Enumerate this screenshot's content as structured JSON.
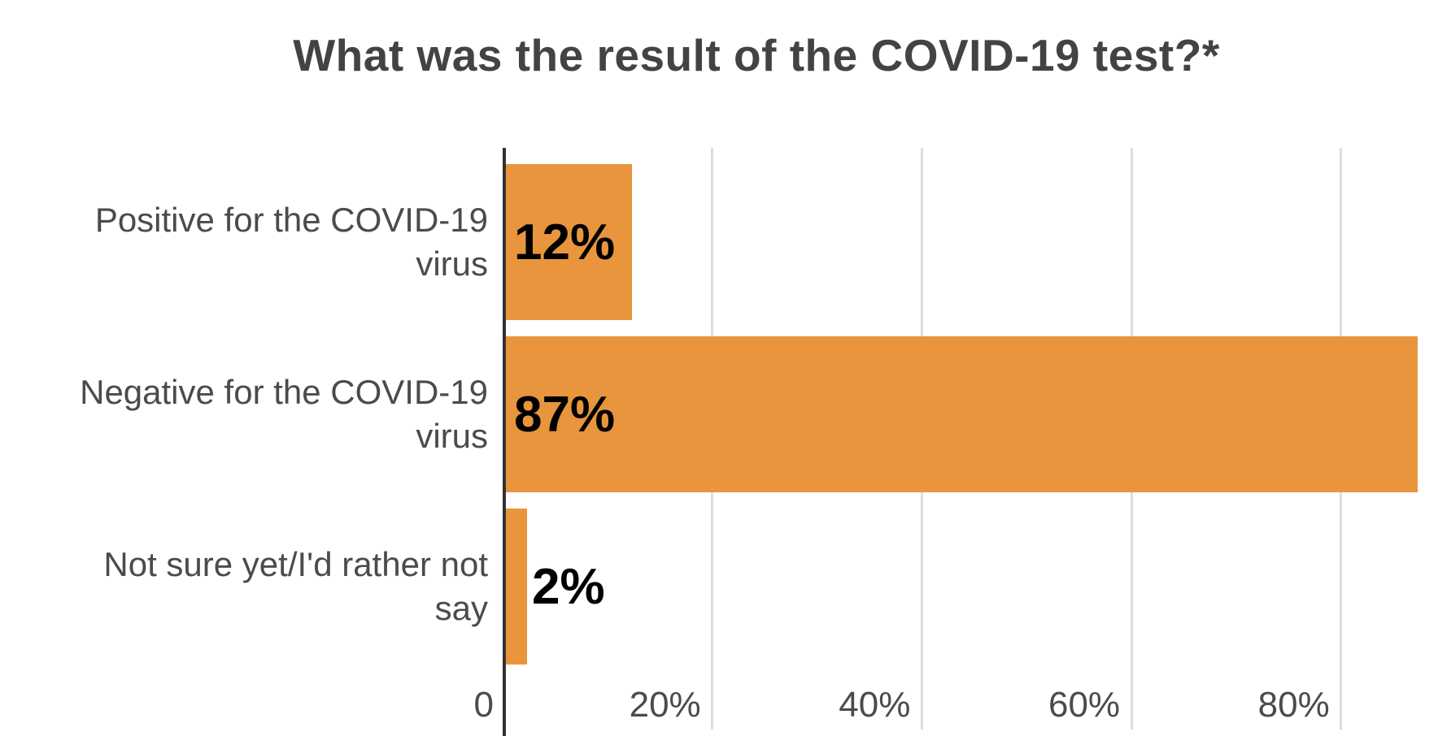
{
  "chart_data": {
    "type": "bar",
    "orientation": "horizontal",
    "title": "What was the result of the COVID-19 test?*",
    "categories": [
      "Positive for the COVID-19 virus",
      "Negative for the COVID-19 virus",
      "Not sure yet/I'd rather not say"
    ],
    "category_lines": [
      [
        "Positive for the COVID-19",
        "virus"
      ],
      [
        "Negative for the COVID-19",
        "virus"
      ],
      [
        "Not sure yet/I'd rather not",
        "say"
      ]
    ],
    "values": [
      12,
      87,
      2
    ],
    "annotations": [
      "12%",
      "87%",
      "2%"
    ],
    "x_ticks": [
      {
        "label": "0",
        "value": 0
      },
      {
        "label": "20%",
        "value": 20
      },
      {
        "label": "40%",
        "value": 40
      },
      {
        "label": "60%",
        "value": 60
      },
      {
        "label": "80%",
        "value": 80
      }
    ],
    "xlim": [
      0,
      90.5
    ],
    "xlabel": "",
    "ylabel": "",
    "grid": true,
    "legend": "none",
    "colors": {
      "bar": "#E8953D",
      "annotation": "#000000",
      "axis_line": "#333333",
      "gridline": "#DDDDDD",
      "tick_label": "#4B4B4B",
      "category_label": "#4B4B4B",
      "title": "#434343",
      "background": "#FFFFFF"
    }
  }
}
